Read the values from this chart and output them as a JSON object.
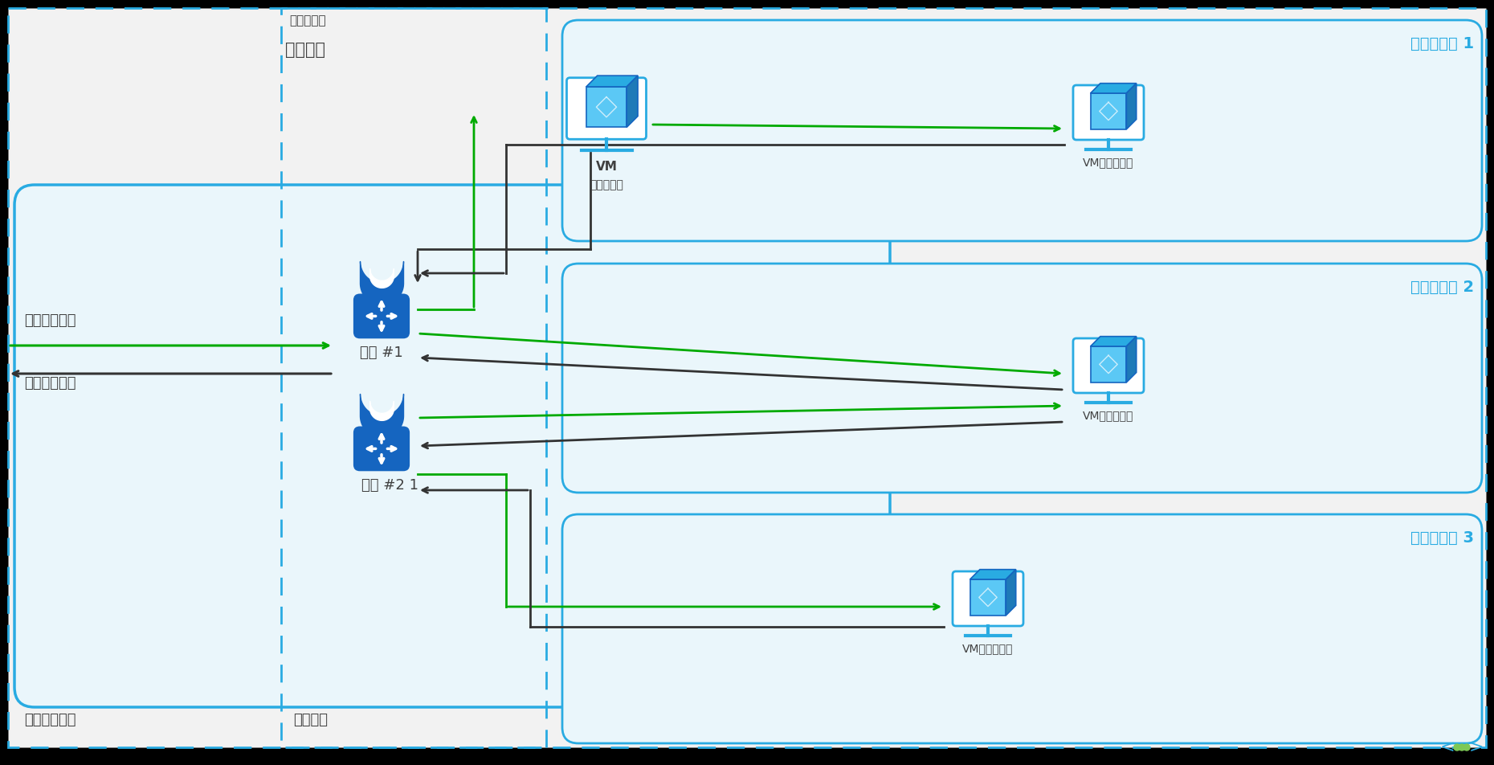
{
  "bg_outer": "#f2f2f2",
  "bg_inner": "#f0f8fc",
  "bg_zone": "#e8f5fb",
  "border_blue": "#29abe2",
  "border_dark": "#333333",
  "green": "#00aa00",
  "dark": "#333333",
  "white": "#ffffff",
  "lock_blue": "#1565c0",
  "lock_light": "#4a90d9",
  "vm_blue": "#29abe2",
  "vm_dark_blue": "#1565c0",
  "text_gray": "#404040",
  "label_az1": "可用性区域 1",
  "label_az2": "可用性区域 2",
  "label_az3": "可用性区域 3",
  "label_instance1": "实例 #1",
  "label_instance2": "实例 #2 1",
  "label_vm_top": "VM",
  "label_vm_top2": "（区域性）",
  "label_vm_az": "VM（区域性）",
  "label_ingress": "跨界入口流量",
  "label_egress": "跨界出口流量",
  "label_vnet": "你的虚拟网络",
  "label_gw_subnet": "网关子网",
  "label_zone_vgw1": "区域性虚拟",
  "label_zone_vgw2": "网络网关"
}
